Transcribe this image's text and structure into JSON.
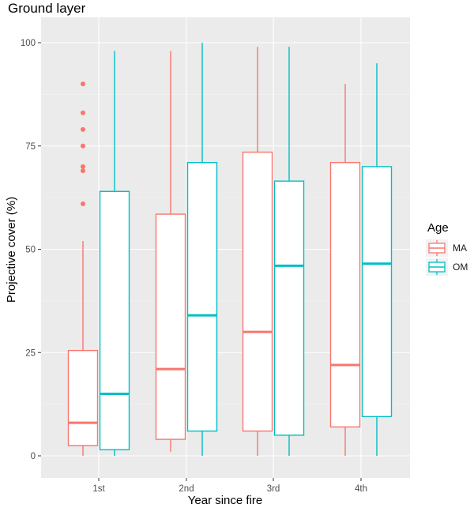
{
  "chart_data": {
    "type": "boxplot",
    "title": "Ground layer",
    "xlabel": "Year since fire",
    "ylabel": "Projective cover (%)",
    "categories": [
      "1st",
      "2nd",
      "3rd",
      "4th"
    ],
    "ylim": [
      0,
      100
    ],
    "yticks": [
      0,
      25,
      50,
      75,
      100
    ],
    "grid": true,
    "legend": {
      "title": "Age",
      "position": "right"
    },
    "series": [
      {
        "name": "MA",
        "color": "#F8766D",
        "boxes": [
          {
            "whisker_low": 0,
            "q1": 2.5,
            "median": 8,
            "q3": 25.5,
            "whisker_high": 52,
            "outliers": [
              61,
              69,
              70,
              75,
              79,
              83,
              90
            ]
          },
          {
            "whisker_low": 1,
            "q1": 4,
            "median": 21,
            "q3": 58.5,
            "whisker_high": 98,
            "outliers": []
          },
          {
            "whisker_low": 0,
            "q1": 6,
            "median": 30,
            "q3": 73.5,
            "whisker_high": 99,
            "outliers": []
          },
          {
            "whisker_low": 0,
            "q1": 7,
            "median": 22,
            "q3": 71,
            "whisker_high": 90,
            "outliers": []
          }
        ]
      },
      {
        "name": "OM",
        "color": "#00BFC4",
        "boxes": [
          {
            "whisker_low": 0,
            "q1": 1.5,
            "median": 15,
            "q3": 64,
            "whisker_high": 98,
            "outliers": []
          },
          {
            "whisker_low": 0,
            "q1": 6,
            "median": 34,
            "q3": 71,
            "whisker_high": 100,
            "outliers": []
          },
          {
            "whisker_low": 0,
            "q1": 5,
            "median": 46,
            "q3": 66.5,
            "whisker_high": 99,
            "outliers": []
          },
          {
            "whisker_low": 0,
            "q1": 9.5,
            "median": 46.5,
            "q3": 70,
            "whisker_high": 95,
            "outliers": []
          }
        ]
      }
    ]
  }
}
